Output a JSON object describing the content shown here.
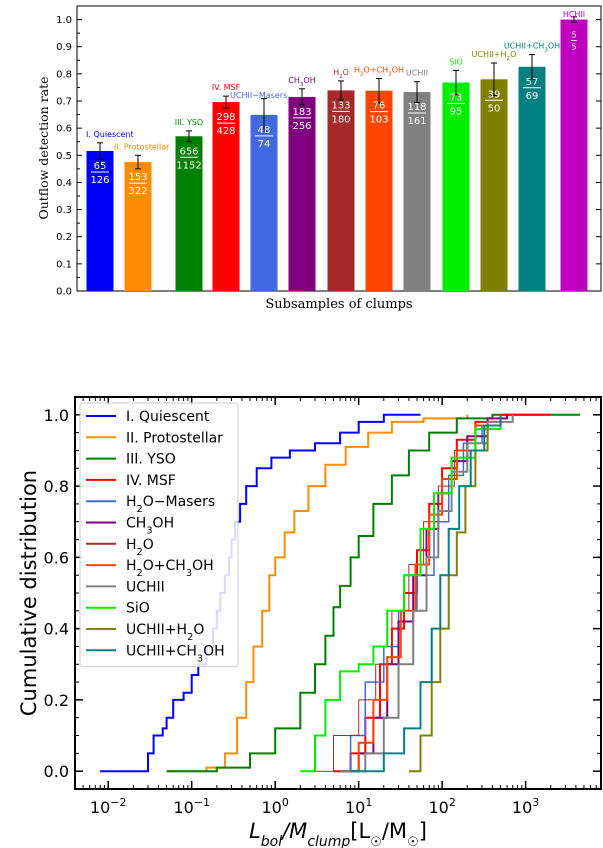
{
  "chart_data": [
    {
      "type": "bar",
      "title": "",
      "xlabel": "Subsamples of clumps",
      "ylabel": "Outflow detection rate",
      "ylim": [
        0,
        1.05
      ],
      "yticks": [
        "0.0",
        "0.1",
        "0.2",
        "0.3",
        "0.4",
        "0.5",
        "0.6",
        "0.7",
        "0.8",
        "0.9",
        "1.0"
      ],
      "grid": false,
      "bars": [
        {
          "label": "I. Quiescent",
          "value": 0.516,
          "err": 0.03,
          "num": "65",
          "den": "126",
          "color": "#0000ff",
          "label_color": "#0000ff"
        },
        {
          "label": "II. Protostellar",
          "value": 0.475,
          "err": 0.025,
          "num": "153",
          "den": "322",
          "color": "#ff8c00",
          "label_color": "#ff8c00"
        },
        {
          "label": "III. YSO",
          "value": 0.57,
          "err": 0.02,
          "num": "656",
          "den": "1152",
          "color": "#008000",
          "label_color": "#008000"
        },
        {
          "label": "IV. MSF",
          "value": 0.696,
          "err": 0.022,
          "num": "298",
          "den": "428",
          "color": "#ff0000",
          "label_color": "#ff0000"
        },
        {
          "label": "UCHII - Masers",
          "value": 0.649,
          "err": 0.06,
          "num": "48",
          "den": "74",
          "color": "#4169e1",
          "label_color": "#4169e1"
        },
        {
          "label": "CH3OH",
          "value": 0.715,
          "err": 0.03,
          "num": "183",
          "den": "256",
          "color": "#800080",
          "label_color": "#800080"
        },
        {
          "label": "H2O",
          "value": 0.739,
          "err": 0.035,
          "num": "133",
          "den": "180",
          "color": "#a52a2a",
          "label_color": "#a52a2a"
        },
        {
          "label": "H2O + CH3OH",
          "value": 0.738,
          "err": 0.045,
          "num": "76",
          "den": "103",
          "color": "#ff4500",
          "label_color": "#ff4500"
        },
        {
          "label": "UCHII",
          "value": 0.733,
          "err": 0.038,
          "num": "118",
          "den": "161",
          "color": "#808080",
          "label_color": "#808080"
        },
        {
          "label": "SiO",
          "value": 0.768,
          "err": 0.045,
          "num": "73",
          "den": "95",
          "color": "#00ee00",
          "label_color": "#00ee00"
        },
        {
          "label": "UCHII + H2O",
          "value": 0.78,
          "err": 0.06,
          "num": "39",
          "den": "50",
          "color": "#808000",
          "label_color": "#808000"
        },
        {
          "label": "UCHII + CH3OH",
          "value": 0.826,
          "err": 0.045,
          "num": "57",
          "den": "69",
          "color": "#008080",
          "label_color": "#008080"
        },
        {
          "label": "HCHII",
          "value": 1.0,
          "err": 0.01,
          "num": "5",
          "den": "5",
          "color": "#c000c0",
          "label_color": "#c000c0"
        }
      ]
    },
    {
      "type": "line",
      "title": "",
      "xlabel": "L_bol/M_clump[L☉/M☉]",
      "ylabel": "Cumulative distribution",
      "xscale": "log",
      "xlim": [
        0.004,
        8000
      ],
      "ylim": [
        -0.05,
        1.05
      ],
      "yticks": [
        "0.0",
        "0.2",
        "0.4",
        "0.6",
        "0.8",
        "1.0"
      ],
      "xticks": [
        0.01,
        0.1,
        1,
        10,
        100,
        1000
      ],
      "legend_placement": "upper-left",
      "grid": false,
      "series": [
        {
          "name": "I. Quiescent",
          "color": "#0000ff",
          "width": 2,
          "points": [
            [
              0.008,
              0
            ],
            [
              0.03,
              0
            ],
            [
              0.03,
              0.05
            ],
            [
              0.035,
              0.1
            ],
            [
              0.045,
              0.12
            ],
            [
              0.05,
              0.15
            ],
            [
              0.06,
              0.2
            ],
            [
              0.08,
              0.22
            ],
            [
              0.1,
              0.27
            ],
            [
              0.12,
              0.3
            ],
            [
              0.15,
              0.35
            ],
            [
              0.18,
              0.4
            ],
            [
              0.2,
              0.45
            ],
            [
              0.22,
              0.5
            ],
            [
              0.25,
              0.55
            ],
            [
              0.28,
              0.6
            ],
            [
              0.3,
              0.65
            ],
            [
              0.33,
              0.7
            ],
            [
              0.38,
              0.75
            ],
            [
              0.45,
              0.8
            ],
            [
              0.6,
              0.85
            ],
            [
              0.9,
              0.88
            ],
            [
              1.5,
              0.9
            ],
            [
              3,
              0.92
            ],
            [
              6,
              0.95
            ],
            [
              10,
              0.98
            ],
            [
              20,
              1.0
            ],
            [
              55,
              1.0
            ]
          ]
        },
        {
          "name": "II. Protostellar",
          "color": "#ff8c00",
          "width": 2,
          "points": [
            [
              0.05,
              0
            ],
            [
              0.15,
              0.01
            ],
            [
              0.25,
              0.05
            ],
            [
              0.35,
              0.15
            ],
            [
              0.45,
              0.25
            ],
            [
              0.55,
              0.35
            ],
            [
              0.7,
              0.45
            ],
            [
              0.85,
              0.55
            ],
            [
              1.0,
              0.6
            ],
            [
              1.3,
              0.67
            ],
            [
              1.7,
              0.73
            ],
            [
              2.5,
              0.8
            ],
            [
              4,
              0.86
            ],
            [
              7,
              0.91
            ],
            [
              13,
              0.95
            ],
            [
              25,
              0.98
            ],
            [
              60,
              0.99
            ],
            [
              200,
              1.0
            ]
          ]
        },
        {
          "name": "III. YSO",
          "color": "#008000",
          "width": 2,
          "points": [
            [
              0.05,
              0
            ],
            [
              0.2,
              0.01
            ],
            [
              0.5,
              0.05
            ],
            [
              1,
              0.12
            ],
            [
              2,
              0.22
            ],
            [
              3,
              0.3
            ],
            [
              4,
              0.38
            ],
            [
              5,
              0.46
            ],
            [
              6,
              0.52
            ],
            [
              8,
              0.6
            ],
            [
              10,
              0.66
            ],
            [
              15,
              0.75
            ],
            [
              25,
              0.83
            ],
            [
              40,
              0.9
            ],
            [
              70,
              0.95
            ],
            [
              150,
              0.99
            ],
            [
              400,
              1.0
            ],
            [
              4500,
              1.0
            ]
          ]
        },
        {
          "name": "IV. MSF",
          "color": "#ff0000",
          "width": 2,
          "points": [
            [
              5,
              0
            ],
            [
              8,
              0.05
            ],
            [
              12,
              0.15
            ],
            [
              18,
              0.3
            ],
            [
              25,
              0.4
            ],
            [
              35,
              0.5
            ],
            [
              50,
              0.62
            ],
            [
              70,
              0.75
            ],
            [
              100,
              0.85
            ],
            [
              150,
              0.93
            ],
            [
              250,
              0.98
            ],
            [
              500,
              1.0
            ],
            [
              2000,
              1.0
            ]
          ]
        },
        {
          "name": "H2O - Masers",
          "color": "#4169e1",
          "width": 1.5,
          "points": [
            [
              6,
              0
            ],
            [
              8,
              0.1
            ],
            [
              12,
              0.25
            ],
            [
              20,
              0.35
            ],
            [
              30,
              0.45
            ],
            [
              50,
              0.55
            ],
            [
              80,
              0.7
            ],
            [
              120,
              0.83
            ],
            [
              180,
              0.92
            ],
            [
              300,
              0.97
            ],
            [
              500,
              1.0
            ]
          ]
        },
        {
          "name": "CH3OH",
          "color": "#800080",
          "width": 2,
          "points": [
            [
              6,
              0
            ],
            [
              10,
              0.05
            ],
            [
              15,
              0.15
            ],
            [
              22,
              0.3
            ],
            [
              30,
              0.42
            ],
            [
              45,
              0.55
            ],
            [
              65,
              0.68
            ],
            [
              90,
              0.78
            ],
            [
              130,
              0.87
            ],
            [
              200,
              0.94
            ],
            [
              350,
              0.99
            ],
            [
              600,
              1.0
            ]
          ]
        },
        {
          "name": "H2O",
          "color": "#a52a2a",
          "width": 1,
          "points": [
            [
              2,
              0
            ],
            [
              5,
              0.1
            ],
            [
              10,
              0.2
            ],
            [
              16,
              0.3
            ],
            [
              25,
              0.45
            ],
            [
              40,
              0.58
            ],
            [
              60,
              0.7
            ],
            [
              90,
              0.8
            ],
            [
              140,
              0.9
            ],
            [
              250,
              0.97
            ],
            [
              500,
              1.0
            ]
          ]
        },
        {
          "name": "H2O + CH3OH",
          "color": "#ff4500",
          "width": 2,
          "points": [
            [
              6,
              0
            ],
            [
              10,
              0.08
            ],
            [
              15,
              0.2
            ],
            [
              22,
              0.32
            ],
            [
              32,
              0.45
            ],
            [
              48,
              0.58
            ],
            [
              70,
              0.72
            ],
            [
              100,
              0.82
            ],
            [
              150,
              0.9
            ],
            [
              250,
              0.97
            ],
            [
              500,
              1.0
            ]
          ]
        },
        {
          "name": "UCHII",
          "color": "#808080",
          "width": 2,
          "points": [
            [
              6,
              0
            ],
            [
              12,
              0.05
            ],
            [
              20,
              0.15
            ],
            [
              30,
              0.3
            ],
            [
              45,
              0.45
            ],
            [
              65,
              0.6
            ],
            [
              90,
              0.73
            ],
            [
              130,
              0.84
            ],
            [
              200,
              0.92
            ],
            [
              350,
              0.98
            ],
            [
              700,
              1.0
            ]
          ]
        },
        {
          "name": "SiO",
          "color": "#00ee00",
          "width": 2,
          "points": [
            [
              2,
              0
            ],
            [
              3,
              0.1
            ],
            [
              4,
              0.2
            ],
            [
              6,
              0.28
            ],
            [
              10,
              0.3
            ],
            [
              15,
              0.35
            ],
            [
              22,
              0.45
            ],
            [
              35,
              0.55
            ],
            [
              55,
              0.68
            ],
            [
              80,
              0.78
            ],
            [
              130,
              0.88
            ],
            [
              250,
              0.96
            ],
            [
              500,
              1.0
            ]
          ]
        },
        {
          "name": "UCHII + H2O",
          "color": "#808000",
          "width": 2,
          "points": [
            [
              40,
              0
            ],
            [
              55,
              0.1
            ],
            [
              75,
              0.25
            ],
            [
              95,
              0.4
            ],
            [
              120,
              0.55
            ],
            [
              150,
              0.67
            ],
            [
              190,
              0.8
            ],
            [
              250,
              0.9
            ],
            [
              350,
              0.97
            ],
            [
              500,
              1.0
            ]
          ]
        },
        {
          "name": "UCHII + CH3OH",
          "color": "#008080",
          "width": 2,
          "points": [
            [
              8,
              0
            ],
            [
              20,
              0.05
            ],
            [
              35,
              0.12
            ],
            [
              55,
              0.25
            ],
            [
              75,
              0.4
            ],
            [
              95,
              0.55
            ],
            [
              120,
              0.68
            ],
            [
              160,
              0.8
            ],
            [
              220,
              0.9
            ],
            [
              320,
              0.97
            ],
            [
              500,
              1.0
            ]
          ]
        }
      ]
    }
  ]
}
